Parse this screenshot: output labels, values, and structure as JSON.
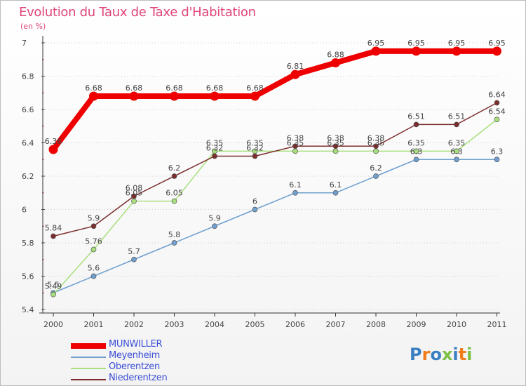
{
  "chart_data": {
    "type": "line",
    "title": "Evolution du Taux de Taxe d'Habitation",
    "subtitle": "(en %)",
    "categories": [
      "2000",
      "2001",
      "2002",
      "2003",
      "2004",
      "2005",
      "2006",
      "2007",
      "2008",
      "2009",
      "2010",
      "2011"
    ],
    "ylim": [
      5.4,
      7
    ],
    "yticks": [
      "5.4",
      "5.6",
      "5.8",
      "6",
      "6.2",
      "6.4",
      "6.6",
      "6.8",
      "7"
    ],
    "series": [
      {
        "name": "MUNWILLER",
        "color": "#ee0000",
        "values": [
          6.36,
          6.68,
          6.68,
          6.68,
          6.68,
          6.68,
          6.81,
          6.88,
          6.95,
          6.95,
          6.95,
          6.95
        ],
        "labels": [
          "6.36",
          "6.68",
          "6.68",
          "6.68",
          "6.68",
          "6.68",
          "6.81",
          "6.88",
          "6.95",
          "6.95",
          "6.95",
          "6.95"
        ]
      },
      {
        "name": "Meyenheim",
        "color": "#6fa0cf",
        "values": [
          5.5,
          5.6,
          5.7,
          5.8,
          5.9,
          6,
          6.1,
          6.1,
          6.2,
          6.3,
          6.3,
          6.3
        ],
        "labels": [
          "5.5",
          "5.6",
          "5.7",
          "5.8",
          "5.9",
          "6",
          "6.1",
          "6.1",
          "6.2",
          "6.3",
          "6.3",
          "6.3"
        ]
      },
      {
        "name": "Oberentzen",
        "color": "#a9e07e",
        "values": [
          5.49,
          5.76,
          6.05,
          6.05,
          6.35,
          6.35,
          6.35,
          6.35,
          6.35,
          6.35,
          6.35,
          6.54
        ],
        "labels": [
          "5.49",
          "5.76",
          "6.05",
          "6.05",
          "6.35",
          "6.35",
          "6.35",
          "6.35",
          "6.35",
          "6.35",
          "6.35",
          "6.54"
        ]
      },
      {
        "name": "Niederentzen",
        "color": "#7b2d2d",
        "values": [
          5.84,
          5.9,
          6.08,
          6.2,
          6.32,
          6.32,
          6.38,
          6.38,
          6.38,
          6.51,
          6.51,
          6.64
        ],
        "labels": [
          "5.84",
          "5.9",
          "6.08",
          "6.2",
          "6.32",
          "6.32",
          "6.38",
          "6.38",
          "6.38",
          "6.51",
          "6.51",
          "6.64"
        ]
      }
    ]
  },
  "logo": {
    "text": "Proxiti"
  }
}
